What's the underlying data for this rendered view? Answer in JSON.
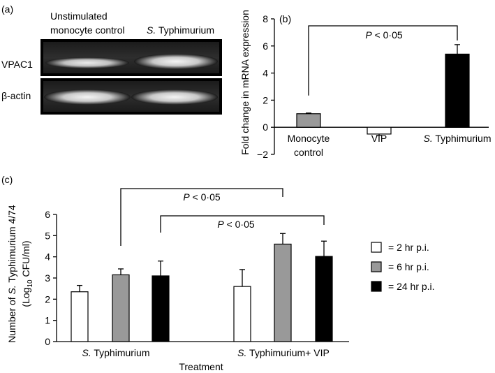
{
  "panel_a": {
    "label": "(a)",
    "lane_labels": [
      "Unstimulated\nmonocyte control",
      "S. Typhimurium"
    ],
    "row_labels": [
      "VPAC1",
      "β-actin"
    ]
  },
  "chart_data": [
    {
      "id": "panel_b",
      "panel_label": "(b)",
      "type": "bar",
      "categories": [
        "Monocyte control",
        "VIP",
        "S. Typhimurium"
      ],
      "values": [
        1.0,
        -0.5,
        5.4
      ],
      "errors": [
        0.05,
        0.1,
        0.7
      ],
      "colors": [
        "#999999",
        "#ffffff",
        "#000000"
      ],
      "ylabel": "Fold change in mRNA expression",
      "ylim": [
        -2,
        8
      ],
      "yticks": [
        -2,
        0,
        2,
        4,
        6,
        8
      ],
      "ytick_labels": [
        "−2",
        "0",
        "2",
        "4",
        "6",
        "8"
      ],
      "annotations": [
        {
          "text": "P < 0·05",
          "from_category": 0,
          "to_category": 2
        }
      ],
      "grid": false
    },
    {
      "id": "panel_c",
      "panel_label": "(c)",
      "type": "bar",
      "categories": [
        "S. Typhimurium",
        "S. Typhimurium+ VIP"
      ],
      "series": [
        {
          "name": "= 2 hr p.i.",
          "values": [
            2.35,
            2.6
          ],
          "errors": [
            0.3,
            0.8
          ],
          "color": "#ffffff"
        },
        {
          "name": "= 6 hr p.i.",
          "values": [
            3.15,
            4.6
          ],
          "errors": [
            0.28,
            0.5
          ],
          "color": "#999999"
        },
        {
          "name": "= 24 hr p.i.",
          "values": [
            3.1,
            4.02
          ],
          "errors": [
            0.7,
            0.72
          ],
          "color": "#000000"
        }
      ],
      "ylabel_line1": "Number of S. Typhimurium 4/74",
      "ylabel_line2": "(Log10 CFU/ml)",
      "xlabel": "Treatment",
      "ylim": [
        0,
        6
      ],
      "yticks": [
        0,
        1,
        2,
        3,
        4,
        5,
        6
      ],
      "ytick_labels": [
        "0",
        "1",
        "2",
        "3",
        "4",
        "5",
        "6"
      ],
      "annotations": [
        {
          "text": "P < 0·05",
          "from": [
            0,
            1
          ],
          "to": [
            1,
            1
          ]
        },
        {
          "text": "P < 0·05",
          "from": [
            0,
            2
          ],
          "to": [
            1,
            2
          ]
        }
      ],
      "legend_position": "right",
      "grid": false
    }
  ]
}
